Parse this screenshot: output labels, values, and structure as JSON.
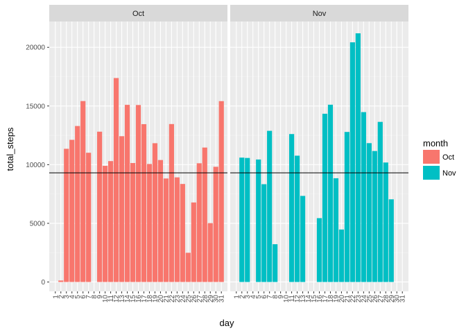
{
  "chart_data": {
    "type": "bar",
    "xlabel": "day",
    "ylabel": "total_steps",
    "ylim": [
      -800,
      22200
    ],
    "yticks": [
      0,
      5000,
      10000,
      15000,
      20000
    ],
    "ytick_labels": [
      "0",
      "5000",
      "10000",
      "15000",
      "20000"
    ],
    "reference_line_y": 9300,
    "legend": {
      "title": "month",
      "position": "right",
      "entries": [
        {
          "label": "Oct",
          "color": "#F8766D"
        },
        {
          "label": "Nov",
          "color": "#00BFC4"
        }
      ]
    },
    "panels": [
      {
        "label": "Oct",
        "color": "#F8766D",
        "days": [
          "1",
          "2",
          "3",
          "4",
          "5",
          "6",
          "7",
          "8",
          "9",
          "10",
          "11",
          "12",
          "13",
          "14",
          "15",
          "16",
          "17",
          "18",
          "19",
          "20",
          "21",
          "22",
          "23",
          "24",
          "25",
          "26",
          "27",
          "28",
          "29",
          "30",
          "31"
        ],
        "values": [
          0,
          126,
          11352,
          12116,
          13294,
          15420,
          11015,
          0,
          12811,
          9900,
          10304,
          17382,
          12426,
          15098,
          10139,
          15084,
          13452,
          10056,
          11829,
          10395,
          8821,
          13460,
          8918,
          8355,
          2492,
          6778,
          10119,
          11458,
          5018,
          9819,
          15414
        ]
      },
      {
        "label": "Nov",
        "color": "#00BFC4",
        "days": [
          "1",
          "2",
          "3",
          "4",
          "5",
          "6",
          "7",
          "8",
          "9",
          "10",
          "11",
          "12",
          "13",
          "14",
          "15",
          "16",
          "17",
          "18",
          "19",
          "20",
          "21",
          "22",
          "23",
          "24",
          "25",
          "26",
          "27",
          "28",
          "29",
          "30",
          "31"
        ],
        "values": [
          0,
          10600,
          10571,
          0,
          10439,
          8334,
          12883,
          3219,
          0,
          0,
          12608,
          10765,
          7336,
          0,
          0,
          5441,
          14339,
          15110,
          8841,
          4472,
          12787,
          20427,
          21194,
          14478,
          11834,
          11162,
          13646,
          10183,
          7047,
          0,
          0
        ]
      }
    ]
  }
}
